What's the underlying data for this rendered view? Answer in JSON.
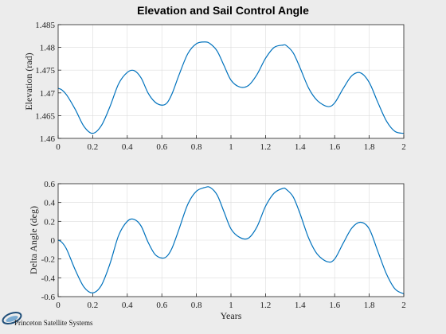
{
  "figure_title": "Elevation and Sail Control Angle",
  "logo": {
    "text": "Princeton Satellite Systems",
    "colors": [
      "#1f4e79",
      "#4a90c8"
    ]
  },
  "chart_data": [
    {
      "type": "line",
      "ylabel": "Elevation (rad)",
      "xlabel": "",
      "xlim": [
        0,
        2
      ],
      "ylim": [
        1.46,
        1.485
      ],
      "xticks": [
        "0",
        "0.2",
        "0.4",
        "0.6",
        "0.8",
        "1",
        "1.2",
        "1.4",
        "1.6",
        "1.8",
        "2"
      ],
      "yticks": [
        "1.46",
        "1.465",
        "1.47",
        "1.475",
        "1.48",
        "1.485"
      ],
      "grid": true,
      "line_color": "#0072bd",
      "series": [
        {
          "x": [
            0,
            0.02,
            0.05,
            0.1,
            0.15,
            0.2,
            0.25,
            0.3,
            0.35,
            0.4,
            0.44,
            0.48,
            0.52,
            0.56,
            0.6,
            0.63,
            0.66,
            0.7,
            0.75,
            0.8,
            0.85,
            0.88,
            0.92,
            0.96,
            1.0,
            1.05,
            1.1,
            1.15,
            1.2,
            1.25,
            1.3,
            1.32,
            1.36,
            1.4,
            1.45,
            1.5,
            1.56,
            1.6,
            1.65,
            1.7,
            1.75,
            1.8,
            1.85,
            1.9,
            1.95,
            2.0
          ],
          "values": [
            1.471,
            1.4707,
            1.4695,
            1.4663,
            1.4626,
            1.4611,
            1.4628,
            1.467,
            1.472,
            1.4745,
            1.4749,
            1.4733,
            1.47,
            1.468,
            1.4673,
            1.4678,
            1.4699,
            1.474,
            1.4786,
            1.4808,
            1.4812,
            1.4808,
            1.4792,
            1.476,
            1.4728,
            1.4713,
            1.4716,
            1.474,
            1.4776,
            1.48,
            1.4805,
            1.4804,
            1.4788,
            1.4755,
            1.471,
            1.4683,
            1.467,
            1.4678,
            1.471,
            1.4738,
            1.4744,
            1.4723,
            1.4679,
            1.4638,
            1.4615,
            1.4611
          ]
        }
      ]
    },
    {
      "type": "line",
      "ylabel": "Delta Angle (deg)",
      "xlabel": "Years",
      "xlim": [
        0,
        2
      ],
      "ylim": [
        -0.6,
        0.6
      ],
      "xticks": [
        "0",
        "0.2",
        "0.4",
        "0.6",
        "0.8",
        "1",
        "1.2",
        "1.4",
        "1.6",
        "1.8",
        "2"
      ],
      "yticks": [
        "-0.6",
        "-0.4",
        "-0.2",
        "0",
        "0.2",
        "0.4",
        "0.6"
      ],
      "grid": true,
      "line_color": "#0072bd",
      "series": [
        {
          "x": [
            0,
            0.02,
            0.05,
            0.1,
            0.15,
            0.2,
            0.25,
            0.3,
            0.35,
            0.4,
            0.44,
            0.48,
            0.52,
            0.56,
            0.6,
            0.63,
            0.66,
            0.7,
            0.75,
            0.8,
            0.85,
            0.88,
            0.92,
            0.96,
            1.0,
            1.05,
            1.1,
            1.15,
            1.2,
            1.25,
            1.3,
            1.32,
            1.36,
            1.4,
            1.45,
            1.5,
            1.56,
            1.6,
            1.65,
            1.7,
            1.75,
            1.8,
            1.85,
            1.9,
            1.95,
            2.0
          ],
          "values": [
            0.0,
            -0.02,
            -0.1,
            -0.32,
            -0.5,
            -0.56,
            -0.48,
            -0.25,
            0.05,
            0.2,
            0.22,
            0.15,
            -0.02,
            -0.15,
            -0.19,
            -0.17,
            -0.08,
            0.12,
            0.38,
            0.52,
            0.56,
            0.56,
            0.48,
            0.3,
            0.12,
            0.03,
            0.02,
            0.14,
            0.36,
            0.5,
            0.55,
            0.54,
            0.46,
            0.28,
            0.02,
            -0.15,
            -0.23,
            -0.2,
            -0.03,
            0.13,
            0.19,
            0.12,
            -0.12,
            -0.36,
            -0.52,
            -0.57
          ]
        }
      ]
    }
  ]
}
